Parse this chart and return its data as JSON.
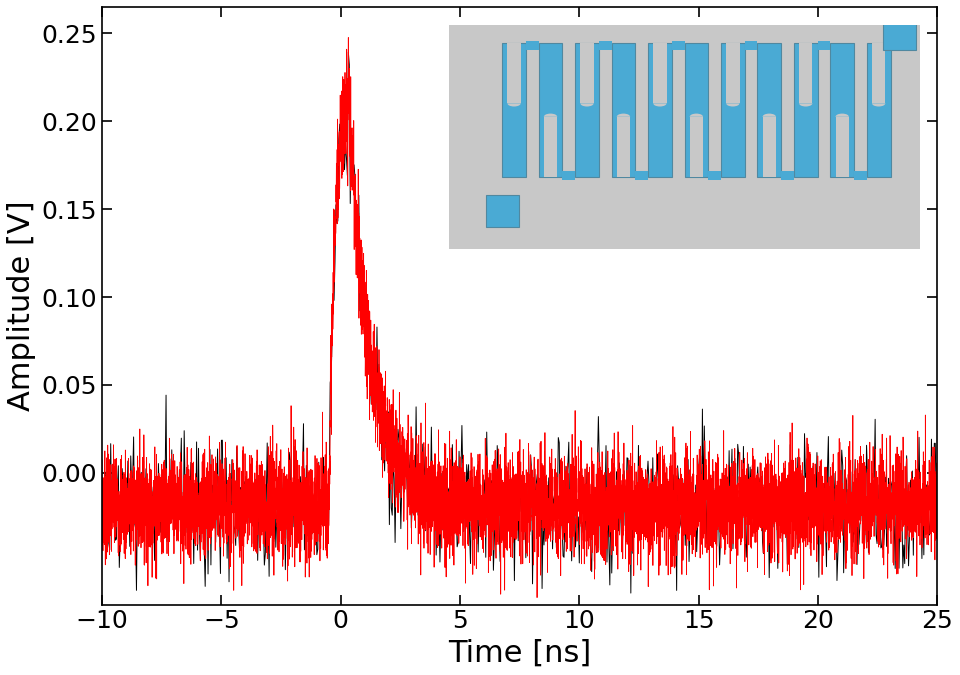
{
  "xlim": [
    -10,
    25
  ],
  "ylim": [
    -0.075,
    0.265
  ],
  "xticks": [
    -10,
    -5,
    0,
    5,
    10,
    15,
    20,
    25
  ],
  "yticks": [
    0.0,
    0.05,
    0.1,
    0.15,
    0.2,
    0.25
  ],
  "xlabel": "Time [ns]",
  "ylabel": "Amplitude [V]",
  "xlabel_fontsize": 22,
  "ylabel_fontsize": 22,
  "tick_fontsize": 18,
  "red_color": "#FF0000",
  "black_color": "#000000",
  "noise_std": 0.015,
  "noise_baseline": -0.018,
  "peak_amplitude": 0.238,
  "rise_tau": 0.3,
  "decay_tau": 0.9,
  "inset_bg_color": "#C8C8C8",
  "inset_snspd_color": "#4AAAD4",
  "inset_border_color": "#5088A0",
  "inset_gap_color": "#C8C8C8",
  "figsize": [
    9.6,
    6.75
  ],
  "dpi": 100
}
